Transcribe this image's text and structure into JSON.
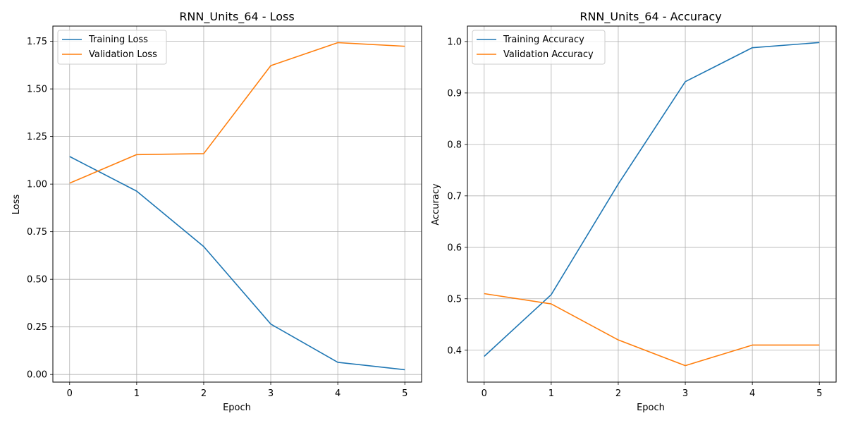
{
  "chart_data": [
    {
      "type": "line",
      "title": "RNN_Units_64 - Loss",
      "xlabel": "Epoch",
      "ylabel": "Loss",
      "x": [
        0,
        1,
        2,
        3,
        4,
        5
      ],
      "xlim": [
        -0.25,
        5.25
      ],
      "ylim": [
        -0.04,
        1.83
      ],
      "yticks": [
        "0.00",
        "0.25",
        "0.50",
        "0.75",
        "1.00",
        "1.25",
        "1.50",
        "1.75"
      ],
      "xticks": [
        "0",
        "1",
        "2",
        "3",
        "4",
        "5"
      ],
      "grid": true,
      "legend_position": "upper-left",
      "series": [
        {
          "name": "Training Loss",
          "color": "#1f77b4",
          "values": [
            1.145,
            0.963,
            0.672,
            0.265,
            0.064,
            0.025
          ]
        },
        {
          "name": "Validation Loss",
          "color": "#ff7f0e",
          "values": [
            1.005,
            1.155,
            1.16,
            1.622,
            1.743,
            1.724
          ]
        }
      ]
    },
    {
      "type": "line",
      "title": "RNN_Units_64 - Accuracy",
      "xlabel": "Epoch",
      "ylabel": "Accuracy",
      "x": [
        0,
        1,
        2,
        3,
        4,
        5
      ],
      "xlim": [
        -0.25,
        5.25
      ],
      "ylim": [
        0.338,
        1.03
      ],
      "yticks": [
        "0.4",
        "0.5",
        "0.6",
        "0.7",
        "0.8",
        "0.9",
        "1.0"
      ],
      "xticks": [
        "0",
        "1",
        "2",
        "3",
        "4",
        "5"
      ],
      "grid": true,
      "legend_position": "upper-left",
      "series": [
        {
          "name": "Training Accuracy",
          "color": "#1f77b4",
          "values": [
            0.388,
            0.508,
            0.723,
            0.922,
            0.988,
            0.998
          ]
        },
        {
          "name": "Validation Accuracy",
          "color": "#ff7f0e",
          "values": [
            0.51,
            0.49,
            0.42,
            0.37,
            0.41,
            0.41
          ]
        }
      ]
    }
  ]
}
